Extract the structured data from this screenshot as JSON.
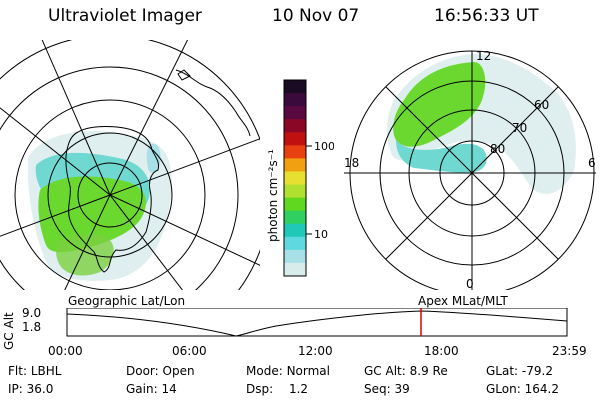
{
  "header": {
    "instrument": "Ultraviolet Imager",
    "date": "10 Nov 07",
    "time": "16:56:33 UT"
  },
  "left_panel": {
    "label": "Geographic Lat/Lon"
  },
  "right_panel": {
    "label": "Apex  MLat/MLT",
    "lat_labels": [
      "60",
      "70",
      "80"
    ],
    "mlt_labels": [
      "12",
      "18",
      "6",
      "0"
    ]
  },
  "colorbar": {
    "unit_label": "photon cm⁻²s⁻¹",
    "tick_labels": [
      "100",
      "10"
    ],
    "colors": [
      "#1a0a22",
      "#3a0a3c",
      "#5a0840",
      "#8a0826",
      "#c01010",
      "#e84010",
      "#f0a010",
      "#e8e030",
      "#b0e030",
      "#60d820",
      "#30d060",
      "#20c8b8",
      "#60d8e0",
      "#a8e0e8",
      "#d8ecec"
    ]
  },
  "timeline": {
    "y_axis_label": "GC Alt",
    "y_ticks": [
      "9.0",
      "1.8"
    ],
    "x_ticks": [
      "00:00",
      "06:00",
      "12:00",
      "18:00",
      "23:59"
    ],
    "marker_color": "#e00000"
  },
  "info": {
    "filter": {
      "label": "Flt:",
      "value": "LBHL"
    },
    "ip": {
      "label": "IP:",
      "value": "36.0"
    },
    "door": {
      "label": "Door:",
      "value": "Open"
    },
    "gain": {
      "label": "Gain:",
      "value": "14"
    },
    "mode": {
      "label": "Mode:",
      "value": "Normal"
    },
    "dsp": {
      "label": "Dsp:",
      "value": "1.2"
    },
    "gc_alt": {
      "label": "GC Alt:",
      "value": "8.9 Re"
    },
    "seq": {
      "label": "Seq:",
      "value": "39"
    },
    "glat": {
      "label": "GLat:",
      "value": "-79.2"
    },
    "glon": {
      "label": "GLon:",
      "value": "164.2"
    }
  }
}
